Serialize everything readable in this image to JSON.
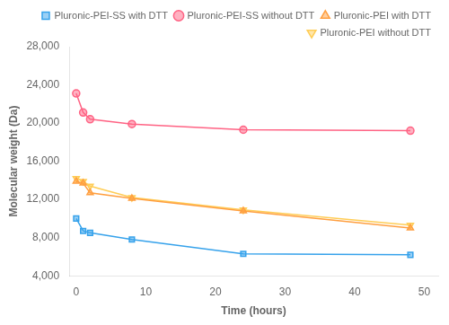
{
  "chart_data": {
    "type": "line",
    "xlabel": "Time (hours)",
    "ylabel": "Molecular weight (Da)",
    "x": [
      0,
      1,
      2,
      8,
      24,
      48
    ],
    "series": [
      {
        "name": "Pluronic-PEI-SS with DTT",
        "values": [
          10000,
          8700,
          8500,
          7800,
          6300,
          6200
        ],
        "marker": "square"
      },
      {
        "name": "Pluronic-PEI-SS without DTT",
        "values": [
          23100,
          21100,
          20400,
          19900,
          19300,
          19200
        ],
        "marker": "circle"
      },
      {
        "name": "Pluronic-PEI with DTT",
        "values": [
          13900,
          13700,
          12700,
          12100,
          10800,
          9000
        ],
        "marker": "triangle_up"
      },
      {
        "name": "Pluronic-PEI without DTT",
        "values": [
          14200,
          13900,
          13400,
          12200,
          10900,
          9300
        ],
        "marker": "triangle_down"
      }
    ],
    "xlim": [
      -1,
      52
    ],
    "xticks": [
      0,
      10,
      20,
      30,
      40,
      50
    ],
    "ylim": [
      4000,
      28000
    ],
    "yticks": [
      {
        "value": 4000,
        "label": "4,000"
      },
      {
        "value": 8000,
        "label": "8,000"
      },
      {
        "value": 12000,
        "label": "12,000"
      },
      {
        "value": 16000,
        "label": "16,000"
      },
      {
        "value": 20000,
        "label": "20,000"
      },
      {
        "value": 24000,
        "label": "24,000"
      },
      {
        "value": 28000,
        "label": "28,000"
      }
    ],
    "grid": false,
    "legend": "upper right"
  }
}
